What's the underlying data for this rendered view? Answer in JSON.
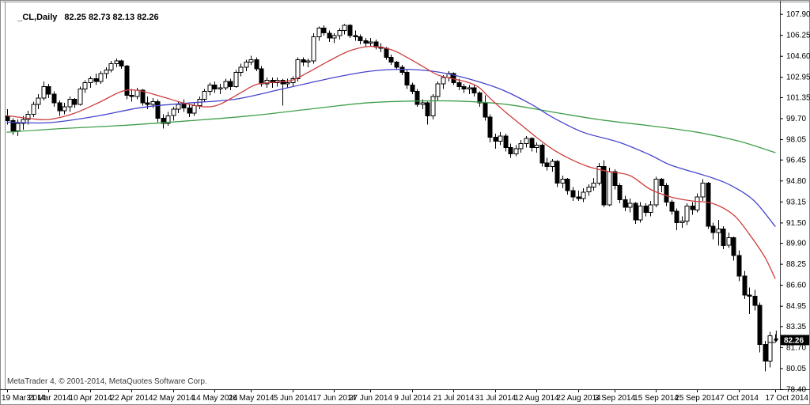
{
  "window": {
    "chart_label": {
      "symbol_period": "_CL,Daily",
      "ohlc": "82.25 82.73 82.13 82.26"
    },
    "copyright": "MetaTrader 4, © 2001-2014, MetaQuotes Software Corp."
  },
  "price_scale": {
    "labels": [
      "107.90",
      "106.25",
      "104.60",
      "102.95",
      "101.35",
      "99.70",
      "98.05",
      "96.45",
      "94.80",
      "93.15",
      "91.50",
      "89.90",
      "88.25",
      "86.60",
      "84.95",
      "83.35",
      "81.70",
      "80.05",
      "78.40"
    ],
    "current_price": "82.26"
  },
  "time_scale": {
    "ticks": [
      {
        "label": "19 Mar 2014",
        "index": 0
      },
      {
        "label": "31 Mar 2014",
        "index": 8
      },
      {
        "label": "10 Apr 2014",
        "index": 16
      },
      {
        "label": "22 Apr 2014",
        "index": 24
      },
      {
        "label": "2 May 2014",
        "index": 32
      },
      {
        "label": "14 May 2014",
        "index": 40
      },
      {
        "label": "26 May 2014",
        "index": 47
      },
      {
        "label": "5 Jun 2014",
        "index": 55
      },
      {
        "label": "17 Jun 2014",
        "index": 63
      },
      {
        "label": "27 Jun 2014",
        "index": 70
      },
      {
        "label": "9 Jul 2014",
        "index": 78
      },
      {
        "label": "21 Jul 2014",
        "index": 86
      },
      {
        "label": "31 Jul 2014",
        "index": 94
      },
      {
        "label": "12 Aug 2014",
        "index": 102
      },
      {
        "label": "22 Aug 2014",
        "index": 110
      },
      {
        "label": "3 Sep 2014",
        "index": 117
      },
      {
        "label": "15 Sep 2014",
        "index": 125
      },
      {
        "label": "25 Sep 2014",
        "index": 133
      },
      {
        "label": "7 Oct 2014",
        "index": 141
      },
      {
        "label": "17 Oct 2014",
        "index": 148
      }
    ]
  },
  "chart_data": {
    "type": "candlestick",
    "symbol": "_CL",
    "timeframe": "Daily",
    "title": "_CL,Daily",
    "last_candle_ohlc": {
      "open": 82.25,
      "high": 82.73,
      "low": 82.13,
      "close": 82.26
    },
    "x_first_date": "19 Mar 2014",
    "x_last_date": "17 Oct 2014",
    "ylim": [
      78.21,
      108.86
    ],
    "grid": false,
    "legend_position": "none",
    "colors": {
      "background": "#ffffff",
      "outline": "#000000",
      "bull_fill": "#ffffff",
      "bear_fill": "#000000",
      "scale_line": "#3c3c3c",
      "scale_text": "#000000",
      "frame": "#8a8a8a",
      "badge_bg": "#000000",
      "badge_text": "#ffffff",
      "ma_fast": "#cf3d3d",
      "ma_medium": "#4545cc",
      "ma_slow": "#3f9e4a"
    },
    "candles": [
      [
        99.9,
        100.4,
        99.2,
        99.5
      ],
      [
        99.5,
        99.7,
        98.4,
        98.7
      ],
      [
        98.7,
        99.6,
        98.3,
        99.3
      ],
      [
        99.3,
        99.9,
        98.8,
        99.6
      ],
      [
        99.6,
        100.3,
        99.2,
        100.0
      ],
      [
        100.0,
        101.0,
        99.8,
        100.8
      ],
      [
        100.8,
        101.6,
        100.4,
        101.3
      ],
      [
        101.3,
        102.6,
        101.1,
        102.2
      ],
      [
        102.2,
        102.4,
        101.3,
        101.6
      ],
      [
        101.6,
        101.8,
        100.6,
        100.9
      ],
      [
        100.9,
        101.1,
        99.9,
        100.3
      ],
      [
        100.3,
        100.9,
        100.0,
        100.6
      ],
      [
        100.6,
        101.4,
        100.2,
        101.2
      ],
      [
        101.2,
        101.3,
        100.5,
        100.8
      ],
      [
        100.8,
        102.2,
        100.7,
        102.0
      ],
      [
        102.0,
        102.7,
        101.7,
        102.5
      ],
      [
        102.5,
        103.0,
        102.1,
        102.8
      ],
      [
        102.8,
        103.2,
        102.3,
        102.6
      ],
      [
        102.6,
        103.4,
        102.4,
        103.2
      ],
      [
        103.2,
        103.7,
        102.8,
        103.5
      ],
      [
        103.5,
        104.2,
        103.3,
        104.0
      ],
      [
        104.0,
        104.4,
        103.7,
        104.2
      ],
      [
        104.2,
        104.3,
        103.6,
        103.8
      ],
      [
        103.8,
        103.9,
        101.2,
        101.5
      ],
      [
        101.5,
        102.0,
        101.0,
        101.4
      ],
      [
        101.4,
        102.1,
        101.2,
        101.9
      ],
      [
        101.9,
        102.0,
        100.7,
        100.9
      ],
      [
        100.9,
        101.4,
        100.4,
        100.8
      ],
      [
        100.8,
        101.3,
        100.5,
        101.0
      ],
      [
        101.0,
        101.2,
        99.4,
        99.7
      ],
      [
        99.7,
        100.0,
        98.9,
        99.3
      ],
      [
        99.3,
        100.2,
        99.1,
        99.9
      ],
      [
        99.9,
        100.6,
        99.5,
        100.4
      ],
      [
        100.4,
        101.0,
        100.1,
        100.8
      ],
      [
        100.8,
        101.2,
        100.2,
        100.5
      ],
      [
        100.5,
        100.8,
        99.8,
        100.1
      ],
      [
        100.1,
        100.9,
        99.9,
        100.7
      ],
      [
        100.7,
        101.4,
        100.4,
        101.2
      ],
      [
        101.2,
        102.0,
        101.0,
        101.8
      ],
      [
        101.8,
        102.5,
        101.5,
        102.3
      ],
      [
        102.3,
        102.6,
        101.7,
        102.0
      ],
      [
        102.0,
        102.4,
        101.6,
        102.1
      ],
      [
        102.1,
        102.8,
        101.9,
        102.6
      ],
      [
        102.6,
        102.8,
        101.9,
        102.2
      ],
      [
        102.2,
        103.5,
        102.1,
        103.3
      ],
      [
        103.3,
        104.0,
        103.0,
        103.7
      ],
      [
        103.7,
        104.3,
        103.4,
        104.1
      ],
      [
        104.1,
        104.6,
        103.9,
        104.3
      ],
      [
        104.3,
        104.5,
        103.4,
        103.6
      ],
      [
        103.6,
        103.8,
        102.2,
        102.4
      ],
      [
        102.4,
        102.9,
        102.1,
        102.7
      ],
      [
        102.7,
        102.9,
        102.1,
        102.5
      ],
      [
        102.5,
        102.9,
        102.2,
        102.7
      ],
      [
        102.7,
        102.8,
        100.7,
        102.4
      ],
      [
        102.4,
        102.8,
        102.1,
        102.5
      ],
      [
        102.5,
        103.0,
        102.2,
        102.8
      ],
      [
        102.8,
        104.5,
        102.6,
        104.3
      ],
      [
        104.3,
        104.5,
        103.8,
        104.1
      ],
      [
        104.1,
        104.4,
        103.7,
        104.2
      ],
      [
        104.2,
        106.4,
        104.0,
        106.1
      ],
      [
        106.1,
        106.9,
        105.8,
        106.8
      ],
      [
        106.8,
        107.0,
        106.2,
        106.4
      ],
      [
        106.4,
        106.6,
        105.7,
        106.0
      ],
      [
        106.0,
        106.4,
        105.6,
        106.2
      ],
      [
        106.2,
        106.8,
        105.9,
        106.6
      ],
      [
        106.6,
        107.1,
        106.3,
        107.0
      ],
      [
        107.0,
        107.1,
        106.0,
        106.2
      ],
      [
        106.2,
        106.6,
        105.8,
        106.1
      ],
      [
        106.1,
        106.3,
        105.5,
        105.8
      ],
      [
        105.8,
        106.0,
        105.3,
        105.6
      ],
      [
        105.6,
        106.0,
        105.4,
        105.7
      ],
      [
        105.7,
        105.9,
        105.1,
        105.3
      ],
      [
        105.3,
        105.6,
        104.9,
        105.2
      ],
      [
        105.2,
        105.3,
        104.3,
        104.5
      ],
      [
        104.5,
        104.7,
        103.9,
        104.1
      ],
      [
        104.1,
        104.2,
        103.5,
        103.7
      ],
      [
        103.7,
        103.9,
        103.1,
        103.3
      ],
      [
        103.3,
        103.5,
        102.0,
        102.3
      ],
      [
        102.3,
        102.5,
        101.6,
        101.8
      ],
      [
        101.8,
        102.0,
        100.6,
        100.8
      ],
      [
        100.8,
        101.2,
        100.4,
        100.9
      ],
      [
        100.9,
        101.0,
        99.2,
        99.9
      ],
      [
        99.9,
        101.6,
        99.6,
        101.4
      ],
      [
        101.4,
        102.6,
        101.1,
        102.4
      ],
      [
        102.4,
        103.1,
        102.0,
        102.9
      ],
      [
        102.9,
        103.4,
        102.6,
        103.2
      ],
      [
        103.2,
        103.3,
        102.3,
        102.5
      ],
      [
        102.5,
        102.8,
        101.9,
        102.2
      ],
      [
        102.2,
        102.4,
        101.7,
        102.0
      ],
      [
        102.0,
        102.3,
        101.6,
        102.1
      ],
      [
        102.1,
        102.3,
        101.4,
        101.7
      ],
      [
        101.7,
        101.8,
        100.6,
        100.9
      ],
      [
        100.9,
        101.5,
        99.5,
        99.8
      ],
      [
        99.8,
        100.0,
        97.8,
        98.2
      ],
      [
        98.2,
        98.5,
        97.3,
        97.9
      ],
      [
        97.9,
        98.6,
        97.6,
        98.3
      ],
      [
        98.3,
        98.5,
        97.1,
        97.4
      ],
      [
        97.4,
        97.7,
        96.6,
        96.9
      ],
      [
        96.9,
        97.6,
        96.7,
        97.3
      ],
      [
        97.3,
        98.0,
        97.0,
        97.7
      ],
      [
        97.7,
        98.3,
        97.4,
        98.1
      ],
      [
        98.1,
        98.2,
        97.1,
        97.4
      ],
      [
        97.4,
        97.8,
        97.0,
        97.6
      ],
      [
        97.6,
        97.7,
        95.9,
        96.2
      ],
      [
        96.2,
        96.6,
        95.6,
        95.9
      ],
      [
        95.9,
        96.5,
        95.5,
        96.3
      ],
      [
        96.3,
        96.4,
        94.3,
        94.6
      ],
      [
        94.6,
        95.2,
        94.2,
        94.9
      ],
      [
        94.9,
        95.0,
        93.7,
        94.0
      ],
      [
        94.0,
        94.3,
        93.2,
        93.5
      ],
      [
        93.5,
        94.0,
        93.2,
        93.4
      ],
      [
        93.4,
        94.2,
        93.1,
        93.9
      ],
      [
        93.9,
        94.5,
        93.6,
        94.3
      ],
      [
        94.3,
        95.0,
        94.0,
        94.6
      ],
      [
        94.6,
        96.2,
        94.4,
        95.9
      ],
      [
        95.9,
        96.4,
        92.7,
        92.9
      ],
      [
        92.9,
        95.8,
        92.8,
        95.5
      ],
      [
        95.5,
        95.7,
        94.1,
        94.4
      ],
      [
        94.4,
        94.6,
        93.0,
        93.3
      ],
      [
        93.3,
        93.6,
        92.4,
        92.7
      ],
      [
        92.7,
        93.4,
        92.3,
        93.0
      ],
      [
        93.0,
        93.1,
        91.4,
        91.7
      ],
      [
        91.7,
        93.1,
        91.5,
        92.8
      ],
      [
        92.8,
        93.0,
        92.0,
        92.3
      ],
      [
        92.3,
        93.2,
        92.0,
        92.9
      ],
      [
        92.9,
        95.1,
        92.7,
        94.9
      ],
      [
        94.9,
        95.0,
        93.9,
        94.4
      ],
      [
        94.4,
        94.6,
        92.8,
        93.1
      ],
      [
        93.1,
        93.3,
        92.1,
        92.4
      ],
      [
        92.4,
        92.6,
        90.9,
        91.5
      ],
      [
        91.5,
        92.0,
        91.1,
        91.6
      ],
      [
        91.6,
        93.0,
        91.3,
        92.8
      ],
      [
        92.8,
        93.1,
        92.1,
        92.5
      ],
      [
        92.5,
        93.8,
        92.3,
        93.5
      ],
      [
        93.5,
        94.9,
        93.2,
        94.6
      ],
      [
        94.6,
        94.7,
        91.0,
        91.2
      ],
      [
        91.2,
        91.5,
        90.2,
        90.7
      ],
      [
        90.7,
        91.7,
        89.7,
        91.0
      ],
      [
        91.0,
        91.2,
        89.4,
        89.7
      ],
      [
        89.7,
        90.7,
        89.5,
        90.3
      ],
      [
        90.3,
        90.4,
        88.5,
        88.9
      ],
      [
        88.9,
        89.3,
        86.9,
        87.3
      ],
      [
        87.3,
        87.7,
        85.5,
        85.8
      ],
      [
        85.8,
        86.4,
        84.3,
        85.7
      ],
      [
        85.7,
        86.2,
        84.6,
        85.0
      ],
      [
        85.0,
        85.2,
        81.3,
        81.9
      ],
      [
        81.9,
        82.2,
        79.8,
        80.6
      ],
      [
        80.6,
        82.9,
        80.1,
        82.6
      ],
      [
        82.25,
        82.73,
        82.13,
        82.26
      ]
    ],
    "overlays": [
      {
        "name": "ma-slow-green",
        "color": "#3f9e4a",
        "points": [
          [
            0,
            98.6
          ],
          [
            11,
            98.9
          ],
          [
            23,
            99.15
          ],
          [
            35,
            99.5
          ],
          [
            47,
            99.9
          ],
          [
            60,
            100.5
          ],
          [
            69,
            100.9
          ],
          [
            78,
            101.05
          ],
          [
            87,
            101.05
          ],
          [
            96,
            100.8
          ],
          [
            105,
            100.2
          ],
          [
            114,
            99.6
          ],
          [
            124,
            99.1
          ],
          [
            133,
            98.6
          ],
          [
            141,
            97.9
          ],
          [
            148,
            97.0
          ]
        ]
      },
      {
        "name": "ma-medium-blue",
        "color": "#4545cc",
        "points": [
          [
            0,
            99.4
          ],
          [
            8,
            99.35
          ],
          [
            17,
            99.85
          ],
          [
            26,
            100.55
          ],
          [
            35,
            100.9
          ],
          [
            44,
            101.2
          ],
          [
            53,
            102.0
          ],
          [
            63,
            102.9
          ],
          [
            70,
            103.4
          ],
          [
            76,
            103.55
          ],
          [
            82,
            103.4
          ],
          [
            88,
            102.9
          ],
          [
            95,
            102.0
          ],
          [
            101,
            100.8
          ],
          [
            105,
            99.8
          ],
          [
            111,
            98.6
          ],
          [
            118,
            97.8
          ],
          [
            124,
            96.8
          ],
          [
            128,
            96.0
          ],
          [
            136,
            95.0
          ],
          [
            140,
            94.3
          ],
          [
            144,
            93.2
          ],
          [
            148,
            91.2
          ]
        ]
      },
      {
        "name": "ma-fast-red",
        "color": "#cf3d3d",
        "points": [
          [
            0,
            99.9
          ],
          [
            4,
            99.7
          ],
          [
            8,
            99.6
          ],
          [
            13,
            100.1
          ],
          [
            18,
            101.0
          ],
          [
            22,
            101.8
          ],
          [
            25,
            101.9
          ],
          [
            29,
            101.5
          ],
          [
            34,
            100.9
          ],
          [
            38,
            100.6
          ],
          [
            41,
            100.8
          ],
          [
            45,
            101.7
          ],
          [
            48,
            102.35
          ],
          [
            52,
            102.55
          ],
          [
            55,
            102.7
          ],
          [
            58,
            103.3
          ],
          [
            62,
            104.2
          ],
          [
            66,
            105.0
          ],
          [
            70,
            105.35
          ],
          [
            74,
            105.1
          ],
          [
            77,
            104.5
          ],
          [
            80,
            103.8
          ],
          [
            83,
            103.1
          ],
          [
            86,
            102.8
          ],
          [
            89,
            102.5
          ],
          [
            91,
            102.1
          ],
          [
            93,
            101.3
          ],
          [
            96,
            100.2
          ],
          [
            99,
            99.2
          ],
          [
            102,
            98.2
          ],
          [
            105,
            97.3
          ],
          [
            108,
            96.6
          ],
          [
            112,
            95.9
          ],
          [
            116,
            95.5
          ],
          [
            120,
            95.2
          ],
          [
            124,
            94.1
          ],
          [
            128,
            93.5
          ],
          [
            132,
            93.2
          ],
          [
            136,
            93.0
          ],
          [
            140,
            92.1
          ],
          [
            143,
            90.6
          ],
          [
            146,
            88.8
          ],
          [
            148,
            87.1
          ]
        ]
      }
    ]
  }
}
